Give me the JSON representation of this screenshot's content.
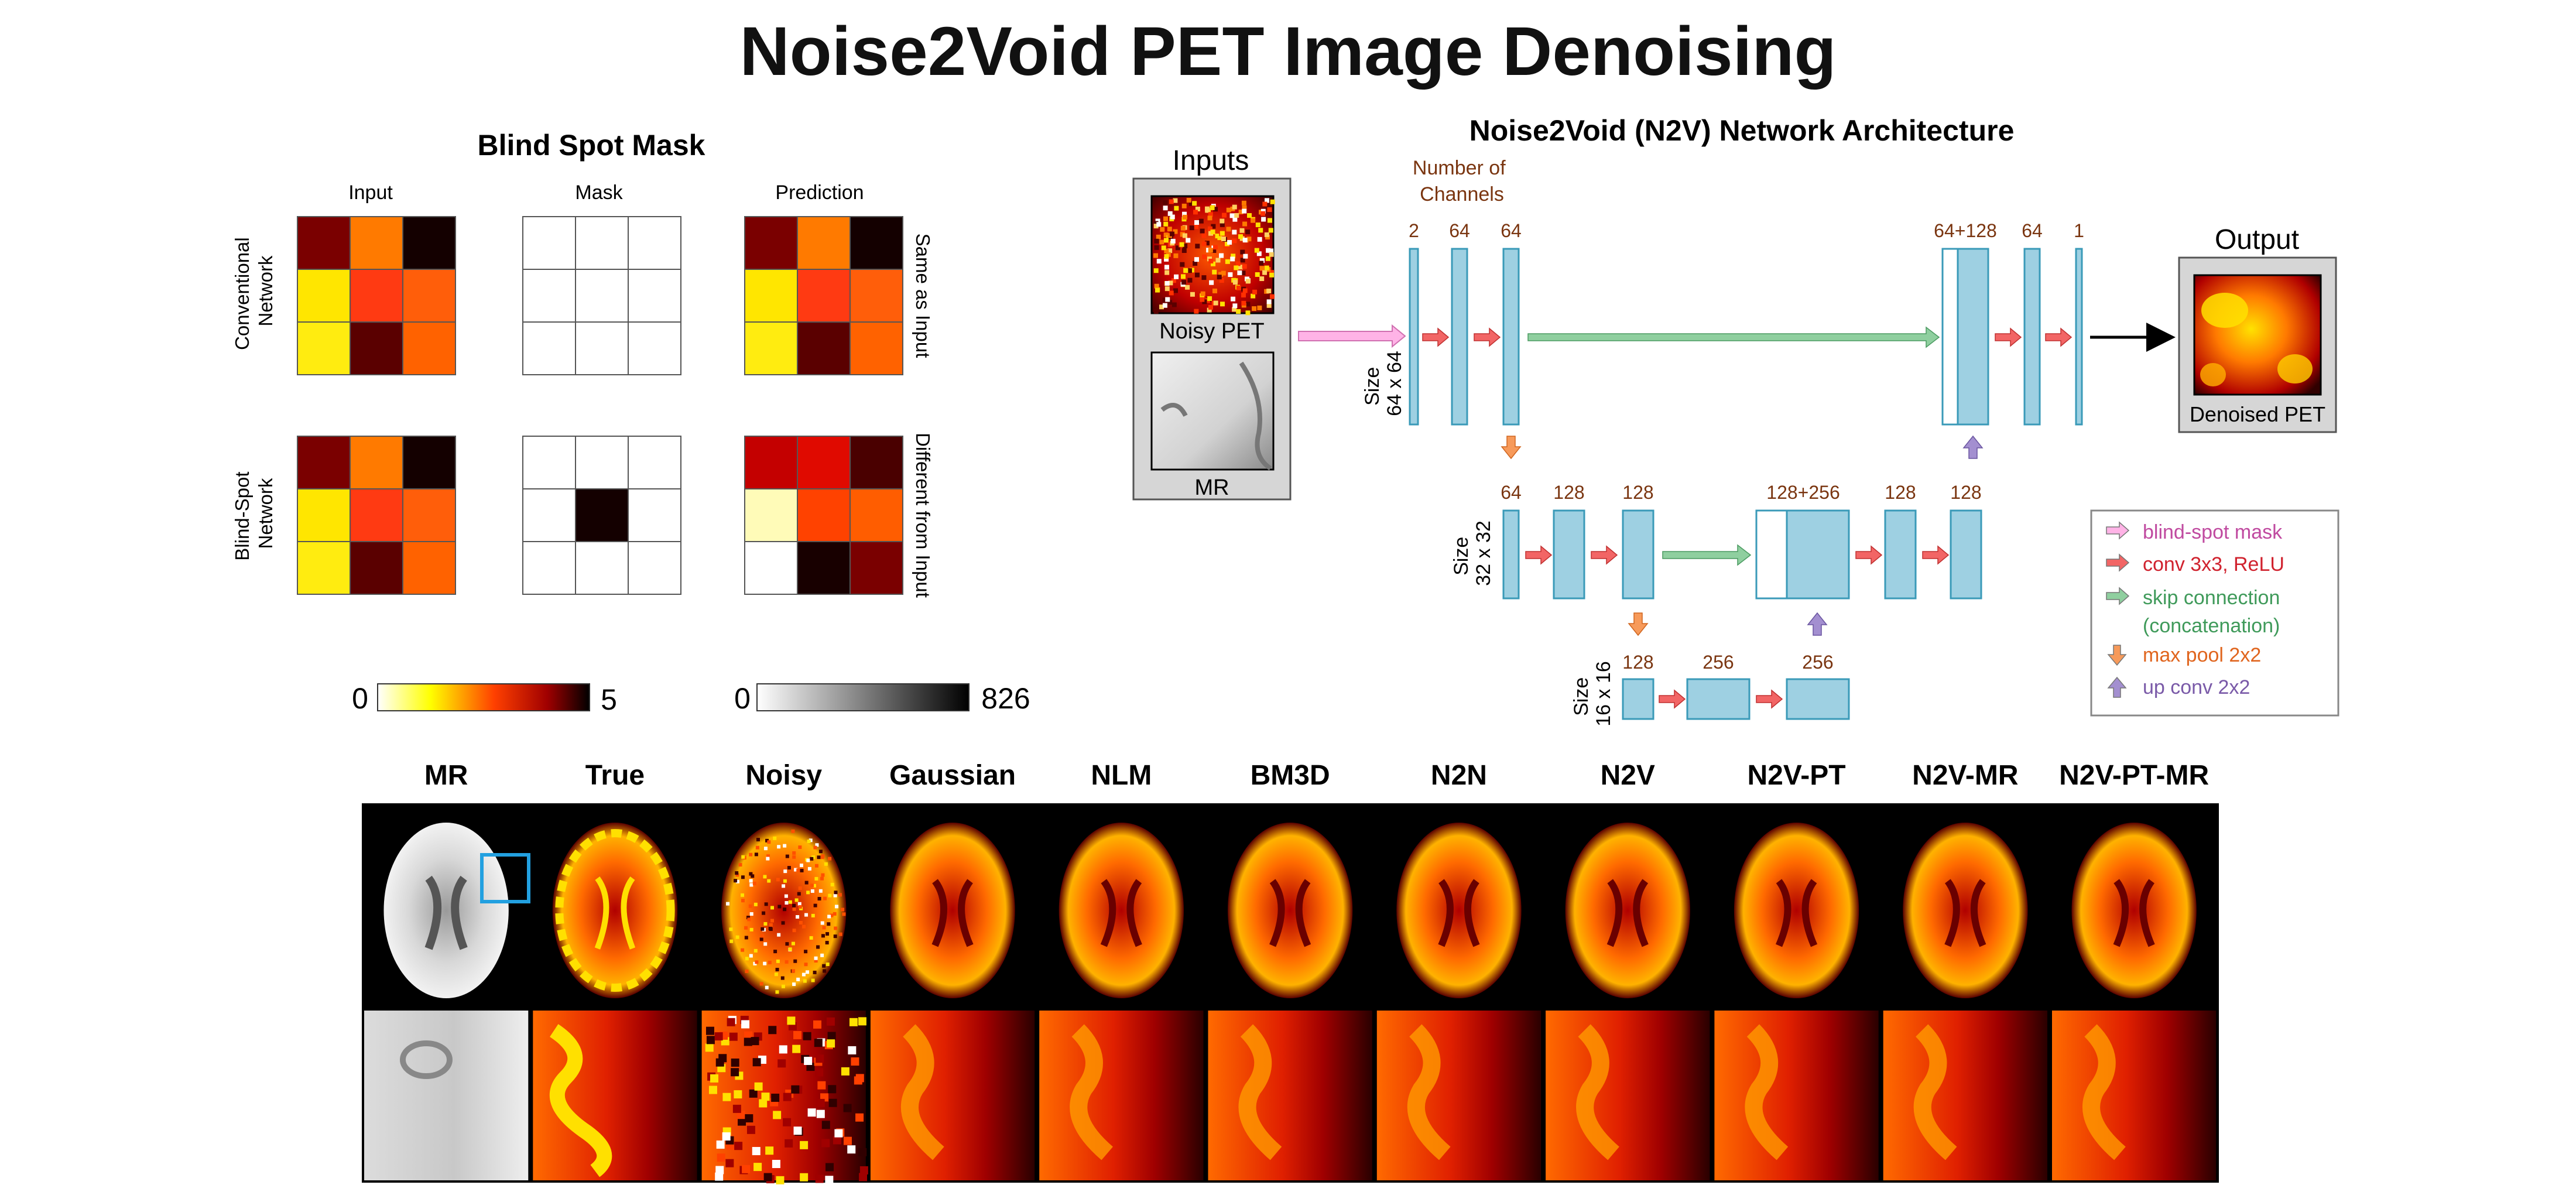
{
  "title": "Noise2Void PET Image Denoising",
  "blind_spot": {
    "heading": "Blind Spot Mask",
    "col_headers": [
      "Input",
      "Mask",
      "Prediction"
    ],
    "row_labels": [
      [
        "Conventional",
        "Network"
      ],
      [
        "Blind-Spot",
        "Network"
      ]
    ],
    "right_labels": [
      "Same as Input",
      "Different from Input"
    ],
    "colorbar_hot": {
      "min": "0",
      "max": "5"
    },
    "colorbar_gray": {
      "min": "0",
      "max": "826"
    },
    "colors": {
      "conv_input": [
        "#7a0000",
        "#ff7a00",
        "#140000",
        "#ffe600",
        "#ff3a12",
        "#ff5e0a",
        "#ffec10",
        "#5a0000",
        "#ff6200"
      ],
      "conv_mask": [
        "#ffffff",
        "#ffffff",
        "#ffffff",
        "#ffffff",
        "#ffffff",
        "#ffffff",
        "#ffffff",
        "#ffffff",
        "#ffffff"
      ],
      "conv_pred": [
        "#7a0000",
        "#ff7a00",
        "#140000",
        "#ffe600",
        "#ff3a12",
        "#ff5e0a",
        "#ffec10",
        "#5a0000",
        "#ff6200"
      ],
      "bs_input": [
        "#7a0000",
        "#ff7a00",
        "#140000",
        "#ffe600",
        "#ff3a12",
        "#ff5e0a",
        "#ffec10",
        "#5a0000",
        "#ff6200"
      ],
      "bs_mask": [
        "#ffffff",
        "#ffffff",
        "#ffffff",
        "#ffffff",
        "#140000",
        "#ffffff",
        "#ffffff",
        "#ffffff",
        "#ffffff"
      ],
      "bs_pred": [
        "#c40000",
        "#e00a00",
        "#4a0000",
        "#fffbb8",
        "#ff4200",
        "#ff5d00",
        "#ffffff",
        "#180000",
        "#7a0000"
      ]
    }
  },
  "architecture": {
    "title": "Noise2Void (N2V)  Network Architecture",
    "inputs_label": "Inputs",
    "noisy_pet_label": "Noisy PET",
    "mr_label": "MR",
    "output_label": "Output",
    "denoised_label": "Denoised PET",
    "num_channels_label": [
      "Number of",
      "Channels"
    ],
    "size_labels": [
      [
        "Size",
        "64 x 64"
      ],
      [
        "Size",
        "32 x 32"
      ],
      [
        "Size",
        "16 x 16"
      ]
    ],
    "level1_channels": [
      "2",
      "64",
      "64",
      "64+128",
      "64",
      "1"
    ],
    "level2_channels": [
      "64",
      "128",
      "128",
      "128+256",
      "128",
      "128"
    ],
    "level3_channels": [
      "128",
      "256",
      "256"
    ],
    "legend": [
      {
        "label": "blind-spot mask",
        "color": "#c04aa0",
        "arrow": "#ffb3e6"
      },
      {
        "label": "conv 3x3, ReLU",
        "color": "#d0222e",
        "arrow": "#f26565"
      },
      {
        "label": "skip connection",
        "color": "#3f9a5a",
        "arrow": "#8fcf9f"
      },
      {
        "label": "(concatenation)",
        "color": "#3f9a5a",
        "arrow": ""
      },
      {
        "label": "max pool 2x2",
        "color": "#e0651e",
        "arrow": "#f79a5a"
      },
      {
        "label": "up conv 2x2",
        "color": "#7a5aa8",
        "arrow": "#a38fd0"
      }
    ]
  },
  "comparison": {
    "methods": [
      "MR",
      "True",
      "Noisy",
      "Gaussian",
      "NLM",
      "BM3D",
      "N2N",
      "N2V",
      "N2V-PT",
      "N2V-MR",
      "N2V-PT-MR"
    ]
  }
}
